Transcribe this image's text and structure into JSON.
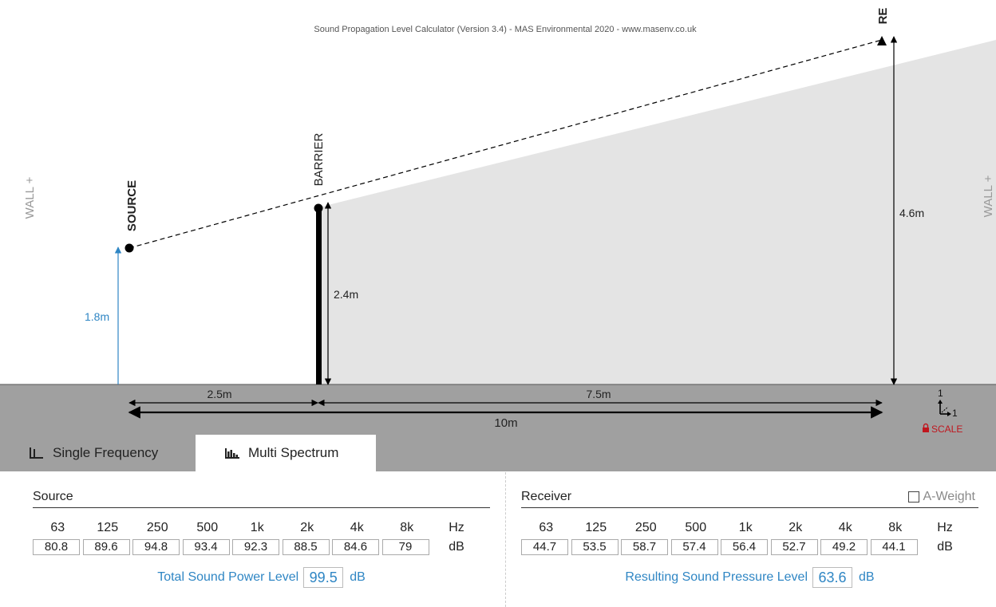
{
  "header": {
    "title": "Sound Propagation Level Calculator (Version 3.4) - MAS Environmental 2020 - www.masenv.co.uk"
  },
  "scene": {
    "wall_left_label": "WALL +",
    "wall_right_label": "WALL +",
    "source_label": "SOURCE",
    "barrier_label": "BARRIER",
    "receiver_label": "RE",
    "source_height": "1.8m",
    "barrier_height": "2.4m",
    "receiver_height": "4.6m",
    "dist_source_barrier": "2.5m",
    "dist_barrier_receiver": "7.5m",
    "dist_total": "10m",
    "scale_ratio_top": "1",
    "scale_ratio_right": "1",
    "scale_label": "SCALE",
    "colors": {
      "ground": "#a0a0a0",
      "shadow": "#e4e4e4",
      "source_height_line": "#2f86c4",
      "scale_label": "#c0161e"
    }
  },
  "tabs": [
    {
      "label": "Single Frequency",
      "icon": "single-frequency-icon",
      "active": false
    },
    {
      "label": "Multi Spectrum",
      "icon": "multi-spectrum-icon",
      "active": true
    }
  ],
  "source": {
    "title": "Source",
    "freqs": [
      "63",
      "125",
      "250",
      "500",
      "1k",
      "2k",
      "4k",
      "8k"
    ],
    "unit_freq": "Hz",
    "values": [
      "80.8",
      "89.6",
      "94.8",
      "93.4",
      "92.3",
      "88.5",
      "84.6",
      "79"
    ],
    "unit_db": "dB",
    "total_label": "Total Sound Power Level",
    "total_value": "99.5",
    "total_unit": "dB"
  },
  "receiver": {
    "title": "Receiver",
    "a_weight_label": "A-Weight",
    "a_weight_checked": false,
    "freqs": [
      "63",
      "125",
      "250",
      "500",
      "1k",
      "2k",
      "4k",
      "8k"
    ],
    "unit_freq": "Hz",
    "values": [
      "44.7",
      "53.5",
      "58.7",
      "57.4",
      "56.4",
      "52.7",
      "49.2",
      "44.1"
    ],
    "unit_db": "dB",
    "total_label": "Resulting Sound Pressure Level",
    "total_value": "63.6",
    "total_unit": "dB"
  }
}
